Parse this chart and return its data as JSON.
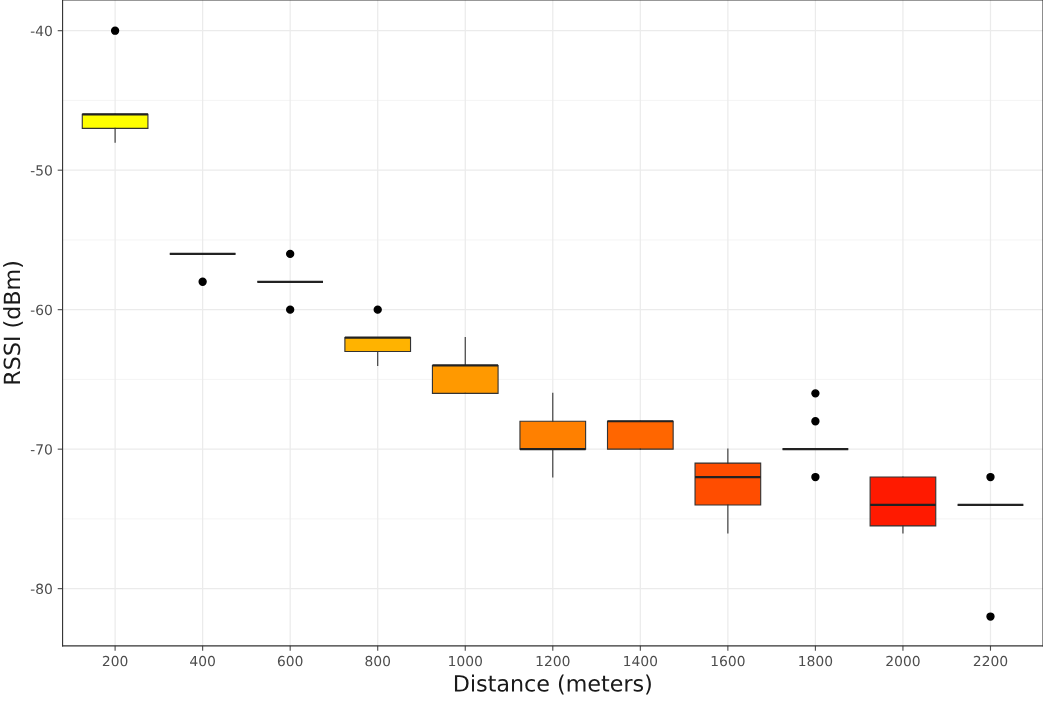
{
  "chart_data": {
    "type": "box",
    "xlabel": "Distance (meters)",
    "ylabel": "RSSI (dBm)",
    "categories": [
      "200",
      "400",
      "600",
      "800",
      "1000",
      "1200",
      "1400",
      "1600",
      "1800",
      "2000",
      "2200"
    ],
    "colors": [
      "#ffff00",
      null,
      null,
      "#ffb300",
      "#ff9900",
      "#ff8000",
      "#ff6600",
      "#ff4d00",
      null,
      "#ff1a00",
      null
    ],
    "boxes": [
      {
        "low": -48,
        "q1": -47,
        "median": -46,
        "q3": -46,
        "high": -46,
        "outliers": [
          -40
        ]
      },
      {
        "low": -56,
        "q1": -56,
        "median": -56,
        "q3": -56,
        "high": -56,
        "outliers": [
          -58
        ]
      },
      {
        "low": -58,
        "q1": -58,
        "median": -58,
        "q3": -58,
        "high": -58,
        "outliers": [
          -56,
          -60
        ]
      },
      {
        "low": -64,
        "q1": -63,
        "median": -62,
        "q3": -62,
        "high": -62,
        "outliers": [
          -60
        ]
      },
      {
        "low": -66,
        "q1": -66,
        "median": -64,
        "q3": -64,
        "high": -62
      },
      {
        "low": -72,
        "q1": -70,
        "median": -70,
        "q3": -68,
        "high": -66
      },
      {
        "low": -70,
        "q1": -70,
        "median": -68,
        "q3": -68,
        "high": -68
      },
      {
        "low": -76,
        "q1": -74,
        "median": -72,
        "q3": -71,
        "high": -70
      },
      {
        "low": -70,
        "q1": -70,
        "median": -70,
        "q3": -70,
        "high": -70,
        "outliers": [
          -66,
          -68,
          -72
        ]
      },
      {
        "low": -76,
        "q1": -75.5,
        "median": -74,
        "q3": -72,
        "high": -72
      },
      {
        "low": -74,
        "q1": -74,
        "median": -74,
        "q3": -74,
        "high": -74,
        "outliers": [
          -72,
          -82
        ]
      }
    ],
    "ylim": [
      -84.1,
      -37.8
    ],
    "yticks": [
      -80,
      -70,
      -60,
      -50,
      -40
    ],
    "grid": true,
    "legend": false
  }
}
